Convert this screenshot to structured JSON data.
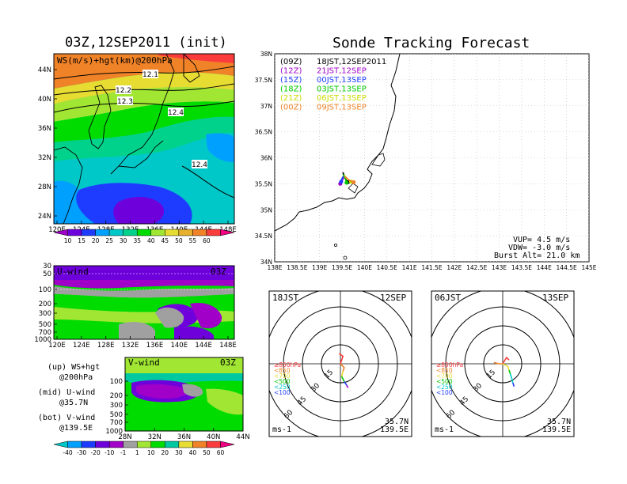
{
  "header": {
    "left_title": "03Z,12SEP2011 (init)",
    "right_title": "Sonde Tracking Forecast"
  },
  "palette": {
    "ws": [
      "#a000c8",
      "#6e00dc",
      "#1e3cff",
      "#00a0ff",
      "#00c8c8",
      "#00d28c",
      "#00dc00",
      "#a0e632",
      "#e6dc32",
      "#e6af2d",
      "#f08228",
      "#fa3c3c",
      "#f00082"
    ],
    "uv": [
      "#00c8c8",
      "#00a0ff",
      "#1e3cff",
      "#6e00dc",
      "#a000c8",
      "#a0a0a0",
      "#a0e632",
      "#00dc00",
      "#00c8a0",
      "#e6dc32",
      "#f08228",
      "#fa3c3c",
      "#f00082"
    ]
  },
  "chart_data": [
    {
      "type": "heatmap",
      "name": "ws-map",
      "label": "WS(m/s)+hgt(km)@200hPa",
      "x_ticks": [
        "120E",
        "124E",
        "128E",
        "132E",
        "136E",
        "140E",
        "144E",
        "148E"
      ],
      "y_ticks": [
        "24N",
        "28N",
        "32N",
        "36N",
        "40N",
        "44N"
      ],
      "contour_labels": [
        "12.1",
        "12.2",
        "12.3",
        "12.4",
        "12.4"
      ],
      "colorbar_labels": [
        "10",
        "15",
        "20",
        "25",
        "30",
        "35",
        "40",
        "45",
        "50",
        "55",
        "60"
      ]
    },
    {
      "type": "heatmap",
      "name": "u-wind",
      "label": "U-wind",
      "time": "03Z",
      "x_ticks": [
        "120E",
        "124E",
        "128E",
        "132E",
        "136E",
        "140E",
        "144E",
        "148E"
      ],
      "y_ticks": [
        "30",
        "50",
        "100",
        "200",
        "300",
        "500",
        "700",
        "1000"
      ]
    },
    {
      "type": "heatmap",
      "name": "v-wind",
      "label": "V-wind",
      "time": "03Z",
      "x_ticks": [
        "28N",
        "32N",
        "36N",
        "40N",
        "44N"
      ],
      "y_ticks": [
        "100",
        "200",
        "300",
        "500",
        "700",
        "1000"
      ],
      "colorbar_labels": [
        "-40",
        "-30",
        "-20",
        "-10",
        "-1",
        "1",
        "10",
        "20",
        "30",
        "40",
        "50",
        "60"
      ]
    },
    {
      "type": "line",
      "name": "tracking-map",
      "x_ticks": [
        "138E",
        "138.5E",
        "139E",
        "139.5E",
        "140E",
        "140.5E",
        "141E",
        "141.5E",
        "142E",
        "142.5E",
        "143E",
        "143.5E",
        "144E",
        "144.5E",
        "145E"
      ],
      "y_ticks": [
        "34N",
        "34.5N",
        "35N",
        "35.5N",
        "36N",
        "36.5N",
        "37N",
        "37.5N",
        "38N"
      ],
      "xlim": [
        138,
        145
      ],
      "ylim": [
        34,
        38
      ],
      "series": [
        {
          "code": "(09Z)",
          "name": "18JST,12SEP2011",
          "color": "#000000",
          "points": [
            [
              139.52,
              35.72
            ],
            [
              139.56,
              35.62
            ],
            [
              139.6,
              35.56
            ],
            [
              139.63,
              35.53
            ]
          ]
        },
        {
          "code": "(12Z)",
          "name": "21JST,12SEP",
          "color": "#a000c8",
          "points": [
            [
              139.55,
              35.64
            ],
            [
              139.5,
              35.56
            ],
            [
              139.46,
              35.5
            ]
          ]
        },
        {
          "code": "(15Z)",
          "name": "00JST,13SEP",
          "color": "#1e3cff",
          "points": [
            [
              139.54,
              35.66
            ],
            [
              139.5,
              35.6
            ],
            [
              139.48,
              35.54
            ]
          ]
        },
        {
          "code": "(18Z)",
          "name": "03JST,13SEP",
          "color": "#00c800",
          "points": [
            [
              139.53,
              35.68
            ],
            [
              139.58,
              35.58
            ],
            [
              139.6,
              35.52
            ]
          ]
        },
        {
          "code": "(21Z)",
          "name": "06JST,13SEP",
          "color": "#c8dc00",
          "points": [
            [
              139.55,
              35.66
            ],
            [
              139.64,
              35.58
            ],
            [
              139.7,
              35.54
            ]
          ]
        },
        {
          "code": "(00Z)",
          "name": "09JST,13SEP",
          "color": "#f08228",
          "points": [
            [
              139.56,
              35.64
            ],
            [
              139.66,
              35.57
            ],
            [
              139.76,
              35.53
            ]
          ]
        }
      ],
      "info": [
        "VUP= 4.5 m/s",
        "VDW= -3.0 m/s",
        "Burst Alt= 21.0 km"
      ]
    },
    {
      "type": "scatter",
      "name": "hodograph-1",
      "time_label": "18JST",
      "date_label": "12SEP",
      "ring_labels": [
        "15",
        "30",
        "45",
        "60"
      ],
      "legend": [
        "≥850hPa",
        "<850",
        "<700",
        "<500",
        "<250",
        "<100"
      ],
      "units": "ms-1",
      "location": [
        "35.7N",
        "139.5E"
      ],
      "segments": [
        {
          "color": "#fa3c3c",
          "points": [
            [
              0,
              0
            ],
            [
              2,
              6
            ],
            [
              -1,
              8
            ]
          ]
        },
        {
          "color": "#f08228",
          "points": [
            [
              0,
              0
            ],
            [
              3,
              -3
            ],
            [
              2,
              -6
            ]
          ]
        },
        {
          "color": "#e6dc32",
          "points": [
            [
              2,
              -6
            ],
            [
              1,
              -10
            ]
          ]
        },
        {
          "color": "#00c800",
          "points": [
            [
              1,
              -10
            ],
            [
              3,
              -14
            ]
          ]
        },
        {
          "color": "#1e3cff",
          "points": [
            [
              3,
              -14
            ],
            [
              5,
              -17
            ]
          ]
        },
        {
          "color": "#a000c8",
          "points": [
            [
              5,
              -17
            ],
            [
              6,
              -19
            ]
          ]
        }
      ]
    },
    {
      "type": "scatter",
      "name": "hodograph-2",
      "time_label": "06JST",
      "date_label": "13SEP",
      "ring_labels": [
        "15",
        "30",
        "45",
        "60"
      ],
      "legend": [
        "≥850hPa",
        "<850",
        "<700",
        "<500",
        "<250",
        "<100"
      ],
      "units": "ms-1",
      "location": [
        "35.7N",
        "139.5E"
      ],
      "segments": [
        {
          "color": "#fa3c3c",
          "points": [
            [
              0,
              0
            ],
            [
              3,
              5
            ],
            [
              5,
              3
            ]
          ]
        },
        {
          "color": "#f08228",
          "points": [
            [
              0,
              0
            ],
            [
              -3,
              0
            ],
            [
              -7,
              1
            ]
          ]
        },
        {
          "color": "#e6dc32",
          "points": [
            [
              0,
              0
            ],
            [
              4,
              -2
            ],
            [
              5,
              -5
            ]
          ]
        },
        {
          "color": "#00c800",
          "points": [
            [
              5,
              -5
            ],
            [
              6,
              -8
            ]
          ]
        },
        {
          "color": "#00c8c8",
          "points": [
            [
              6,
              -8
            ],
            [
              7,
              -11
            ],
            [
              8,
              -15
            ]
          ]
        },
        {
          "color": "#1e3cff",
          "points": [
            [
              8,
              -15
            ],
            [
              9,
              -18
            ]
          ]
        }
      ]
    }
  ],
  "side_legend": [
    {
      "line1": "(up) WS+hgt",
      "line2": "@200hPa"
    },
    {
      "line1": "(mid) U-wind",
      "line2": "@35.7N"
    },
    {
      "line1": "(bot) V-wind",
      "line2": "@139.5E"
    }
  ]
}
